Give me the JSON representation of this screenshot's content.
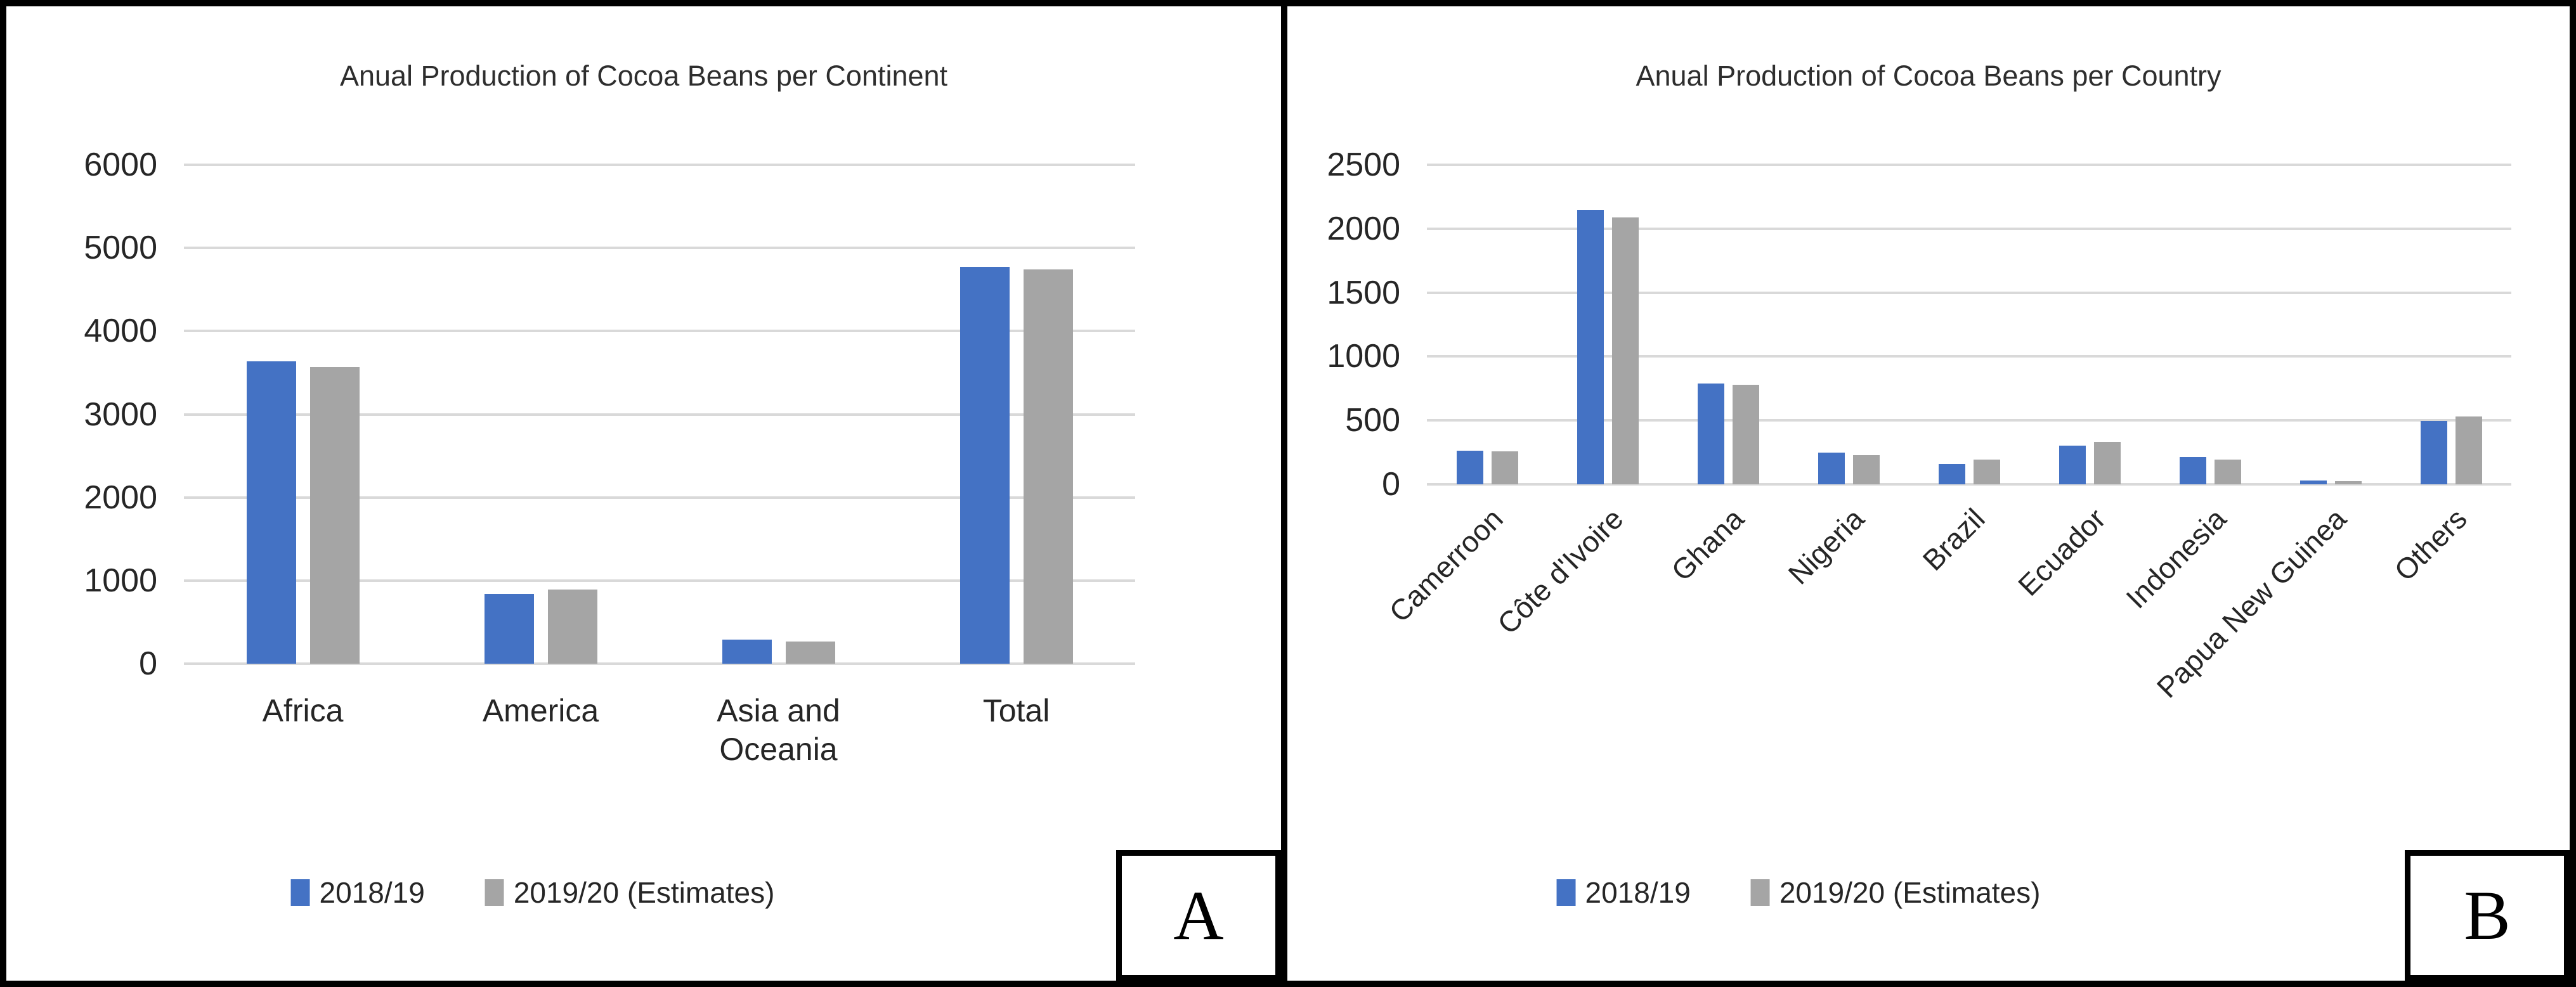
{
  "panels": [
    {
      "label": "A"
    },
    {
      "label": "B"
    }
  ],
  "colors": {
    "series_2018_19": "#4472C4",
    "series_2019_20": "#A5A5A5",
    "gridline": "#D9D9D9",
    "text": "#262626",
    "frame": "#000000"
  },
  "chart_data": [
    {
      "type": "bar",
      "title": "Anual Production of Cocoa Beans per Continent",
      "categories": [
        "Africa",
        "America",
        "Asia and Oceania",
        "Total"
      ],
      "series": [
        {
          "name": "2018/19",
          "color": "#4472C4",
          "values": [
            3640,
            840,
            290,
            4775
          ]
        },
        {
          "name": "2019/20 (Estimates)",
          "color": "#A5A5A5",
          "values": [
            3570,
            895,
            265,
            4745
          ]
        }
      ],
      "ylim": [
        0,
        6000
      ],
      "yticks": [
        0,
        1000,
        2000,
        3000,
        4000,
        5000,
        6000
      ],
      "grid": true,
      "legend_position": "bottom"
    },
    {
      "type": "bar",
      "title": "Anual Production of Cocoa Beans per Country",
      "categories": [
        "Camerroon",
        "Côte d'Ivoire",
        "Ghana",
        "Nigeria",
        "Brazil",
        "Ecuador",
        "Indonesia",
        "Papua New Guinea",
        "Others"
      ],
      "series": [
        {
          "name": "2018/19",
          "color": "#4472C4",
          "values": [
            265,
            2150,
            790,
            250,
            160,
            305,
            212,
            28,
            497
          ]
        },
        {
          "name": "2019/20 (Estimates)",
          "color": "#A5A5A5",
          "values": [
            260,
            2090,
            780,
            230,
            195,
            330,
            192,
            25,
            530
          ]
        }
      ],
      "ylim": [
        0,
        2500
      ],
      "yticks": [
        0,
        500,
        1000,
        1500,
        2000,
        2500
      ],
      "grid": true,
      "legend_position": "bottom"
    }
  ]
}
